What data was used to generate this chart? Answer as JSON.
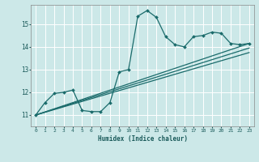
{
  "xlabel": "Humidex (Indice chaleur)",
  "background_color": "#cce8e8",
  "line_color": "#1a6b6b",
  "grid_color": "#ffffff",
  "xlim": [
    -0.5,
    23.5
  ],
  "ylim": [
    10.5,
    15.85
  ],
  "yticks": [
    11,
    12,
    13,
    14,
    15
  ],
  "xticks": [
    0,
    1,
    2,
    3,
    4,
    5,
    6,
    7,
    8,
    9,
    10,
    11,
    12,
    13,
    14,
    15,
    16,
    17,
    18,
    19,
    20,
    21,
    22,
    23
  ],
  "curve1_x": [
    0,
    1,
    2,
    3,
    4,
    5,
    6,
    7,
    8,
    9,
    10,
    11,
    12,
    13,
    14,
    15,
    16,
    17,
    18,
    19,
    20,
    21,
    22,
    23
  ],
  "curve1_y": [
    11.0,
    11.55,
    11.95,
    12.0,
    12.1,
    11.2,
    11.15,
    11.15,
    11.55,
    12.9,
    13.0,
    15.35,
    15.6,
    15.3,
    14.45,
    14.1,
    14.0,
    14.45,
    14.5,
    14.65,
    14.6,
    14.15,
    14.1,
    14.15
  ],
  "line1_x": [
    0,
    23
  ],
  "line1_y": [
    11.0,
    14.15
  ],
  "line2_x": [
    0,
    23
  ],
  "line2_y": [
    11.0,
    13.95
  ],
  "line3_x": [
    0,
    23
  ],
  "line3_y": [
    11.0,
    13.75
  ]
}
